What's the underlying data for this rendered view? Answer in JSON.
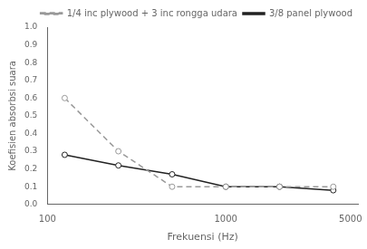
{
  "chart_data": {
    "type": "line",
    "x_label": "Frekuensi (Hz)",
    "y_label": "Koefisien absorbsi suara",
    "x": [
      125,
      250,
      500,
      1000,
      2000,
      4000
    ],
    "series": [
      {
        "name": "1/4 inc plywood + 3 inc rongga udara",
        "color": "#999999",
        "line_style": "dashed",
        "marker": "circle",
        "values": [
          0.6,
          0.3,
          0.1,
          0.1,
          0.1,
          0.1
        ]
      },
      {
        "name": "3/8 panel plywood",
        "color": "#222222",
        "line_style": "solid",
        "marker": "circle",
        "values": [
          0.28,
          0.22,
          0.17,
          0.1,
          0.1,
          0.08
        ]
      }
    ],
    "log": "x",
    "xlim": [
      100,
      5500
    ],
    "xticks": [
      100,
      1000,
      5000
    ],
    "ylim": [
      0.0,
      1.0
    ],
    "yticks": [
      {
        "value": 0.0,
        "label": "0.0"
      },
      0.1,
      0.2,
      0.3,
      0.4,
      0.5,
      0.6,
      0.7,
      0.8,
      0.9,
      {
        "value": 1.0,
        "label": "1.0"
      }
    ],
    "grid": false,
    "legend": "upper right"
  }
}
